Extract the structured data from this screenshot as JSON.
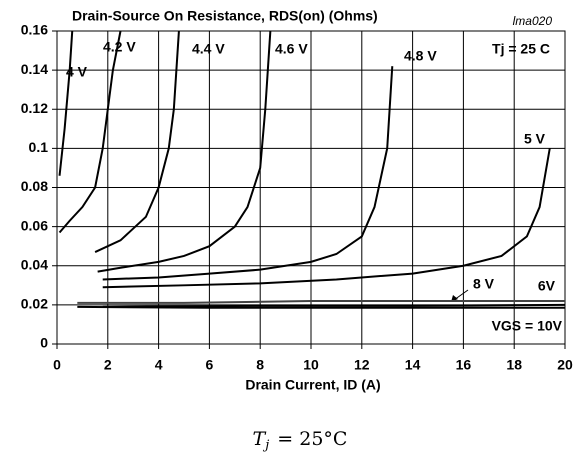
{
  "chart_data": {
    "type": "line",
    "title": "Drain-Source On Resistance, RDS(on) (Ohms)",
    "figure_id": "lma020",
    "annotation": "Tj = 25 C",
    "x_label": "Drain Current, ID (A)",
    "xlim": [
      0,
      20
    ],
    "xticks": [
      0,
      2,
      4,
      6,
      8,
      10,
      12,
      14,
      16,
      18,
      20
    ],
    "ylim": [
      0,
      0.16
    ],
    "yticks": [
      0,
      0.02,
      0.04,
      0.06,
      0.08,
      0.1,
      0.12,
      0.14,
      0.16
    ],
    "grid": true,
    "series": [
      {
        "name": "4 V",
        "color": "#000000",
        "x": [
          0.1,
          0.3,
          0.5,
          0.6
        ],
        "values": [
          0.086,
          0.11,
          0.14,
          0.16
        ]
      },
      {
        "name": "4.2 V",
        "color": "#000000",
        "x": [
          0.1,
          0.5,
          1,
          1.5,
          1.8,
          2,
          2.2,
          2.5
        ],
        "values": [
          0.057,
          0.063,
          0.07,
          0.08,
          0.1,
          0.12,
          0.14,
          0.16
        ]
      },
      {
        "name": "4.4 V",
        "color": "#000000",
        "x": [
          1.5,
          2.5,
          3.5,
          4,
          4.4,
          4.6,
          4.7,
          4.8
        ],
        "values": [
          0.047,
          0.053,
          0.065,
          0.08,
          0.1,
          0.12,
          0.14,
          0.16
        ]
      },
      {
        "name": "4.6 V",
        "color": "#000000",
        "x": [
          1.6,
          2.5,
          4,
          5,
          6,
          7,
          7.5,
          8,
          8.2,
          8.4
        ],
        "values": [
          0.037,
          0.039,
          0.042,
          0.045,
          0.05,
          0.06,
          0.07,
          0.09,
          0.12,
          0.16
        ]
      },
      {
        "name": "4.8 V",
        "color": "#000000",
        "x": [
          1.8,
          4,
          6,
          8,
          10,
          11,
          12,
          12.5,
          13,
          13.2
        ],
        "values": [
          0.033,
          0.034,
          0.036,
          0.038,
          0.042,
          0.046,
          0.055,
          0.07,
          0.1,
          0.142
        ]
      },
      {
        "name": "5 V",
        "color": "#000000",
        "x": [
          1.8,
          5,
          8,
          11,
          14,
          16,
          17.5,
          18.5,
          19,
          19.4
        ],
        "values": [
          0.029,
          0.03,
          0.031,
          0.033,
          0.036,
          0.04,
          0.045,
          0.055,
          0.07,
          0.1
        ]
      },
      {
        "name": "6V",
        "color": "#444444",
        "x": [
          0.8,
          5,
          10,
          15,
          20
        ],
        "values": [
          0.021,
          0.021,
          0.022,
          0.022,
          0.022
        ]
      },
      {
        "name": "8 V",
        "color": "#000000",
        "x": [
          1.8,
          8,
          14,
          20
        ],
        "values": [
          0.019,
          0.0195,
          0.0195,
          0.02
        ]
      },
      {
        "name": "VGS = 10V",
        "color": "#000000",
        "x": [
          0.8,
          6,
          12,
          20
        ],
        "values": [
          0.019,
          0.0185,
          0.0185,
          0.0185
        ]
      }
    ]
  },
  "caption": {
    "symbol": "T",
    "subscript": "j",
    "text": "= 25°C"
  }
}
